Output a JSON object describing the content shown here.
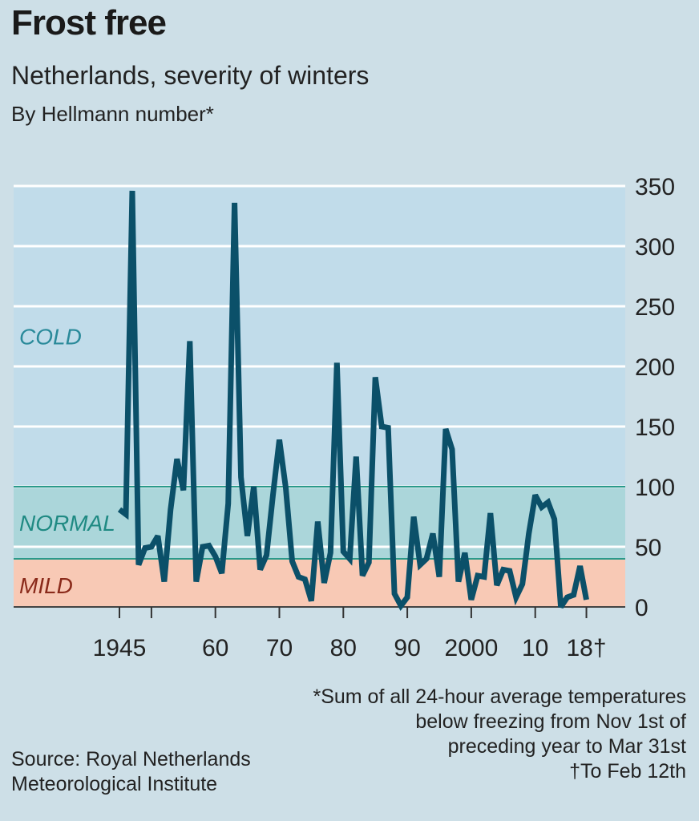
{
  "header": {
    "title": "Frost free",
    "subtitle": "Netherlands, severity of winters",
    "unit": "By Hellmann number*"
  },
  "footer": {
    "note_lines": [
      "*Sum of all 24-hour average temperatures",
      "below freezing from Nov 1st of",
      "preceding year to Mar 31st",
      "†To Feb 12th"
    ],
    "source_lines": [
      "Source: Royal Netherlands",
      "Meteorological Institute"
    ]
  },
  "colors": {
    "background": "#cddfe7",
    "cold_band": "#c1dcea",
    "normal_band": "#abd6da",
    "mild_band": "#f8c9b5",
    "line": "#0b5069",
    "cold_label": "#2a8a9a",
    "normal_label": "#1f8a83",
    "mild_label": "#8a2a1a",
    "band_border": "#2a9a8a",
    "grid": "#ffffff"
  },
  "chart_data": {
    "type": "line",
    "title": "Frost free",
    "subtitle": "Netherlands, severity of winters",
    "ylabel": "By Hellmann number*",
    "xlabel": "",
    "ylim": [
      0,
      350
    ],
    "xlim": [
      1945,
      2018
    ],
    "grid": true,
    "yticks": [
      0,
      50,
      100,
      150,
      200,
      250,
      300,
      350
    ],
    "ytick_labels": [
      "0",
      "50",
      "100",
      "150",
      "200",
      "250",
      "300",
      "350"
    ],
    "xticks": [
      1945,
      1950,
      1960,
      1970,
      1980,
      1990,
      2000,
      2010,
      2018
    ],
    "xtick_labels": [
      "1945",
      "",
      "60",
      "70",
      "80",
      "90",
      "2000",
      "10",
      "18†"
    ],
    "bands": [
      {
        "label": "COLD",
        "from": 100,
        "to": 350
      },
      {
        "label": "NORMAL",
        "from": 40,
        "to": 100
      },
      {
        "label": "MILD",
        "from": 0,
        "to": 40
      }
    ],
    "series": [
      {
        "name": "Hellmann number",
        "x": [
          1945,
          1946,
          1947,
          1948,
          1949,
          1950,
          1951,
          1952,
          1953,
          1954,
          1955,
          1956,
          1957,
          1958,
          1959,
          1960,
          1961,
          1962,
          1963,
          1964,
          1965,
          1966,
          1967,
          1968,
          1969,
          1970,
          1971,
          1972,
          1973,
          1974,
          1975,
          1976,
          1977,
          1978,
          1979,
          1980,
          1981,
          1982,
          1983,
          1984,
          1985,
          1986,
          1987,
          1988,
          1989,
          1990,
          1991,
          1992,
          1993,
          1994,
          1995,
          1996,
          1997,
          1998,
          1999,
          2000,
          2001,
          2002,
          2003,
          2004,
          2005,
          2006,
          2007,
          2008,
          2009,
          2010,
          2011,
          2012,
          2013,
          2014,
          2015,
          2016,
          2017,
          2018
        ],
        "values": [
          81,
          77,
          346,
          35,
          49,
          50,
          59,
          21,
          81,
          123,
          97,
          221,
          21,
          50,
          51,
          42,
          28,
          86,
          336,
          108,
          59,
          100,
          31,
          43,
          93,
          139,
          99,
          38,
          25,
          23,
          5,
          71,
          20,
          45,
          203,
          46,
          40,
          125,
          26,
          37,
          191,
          150,
          149,
          11,
          1,
          8,
          75,
          35,
          40,
          61,
          25,
          148,
          131,
          21,
          45,
          6,
          26,
          25,
          78,
          18,
          31,
          30,
          8,
          19,
          61,
          93,
          83,
          87,
          73,
          0,
          8,
          10,
          34,
          6
        ]
      }
    ]
  }
}
